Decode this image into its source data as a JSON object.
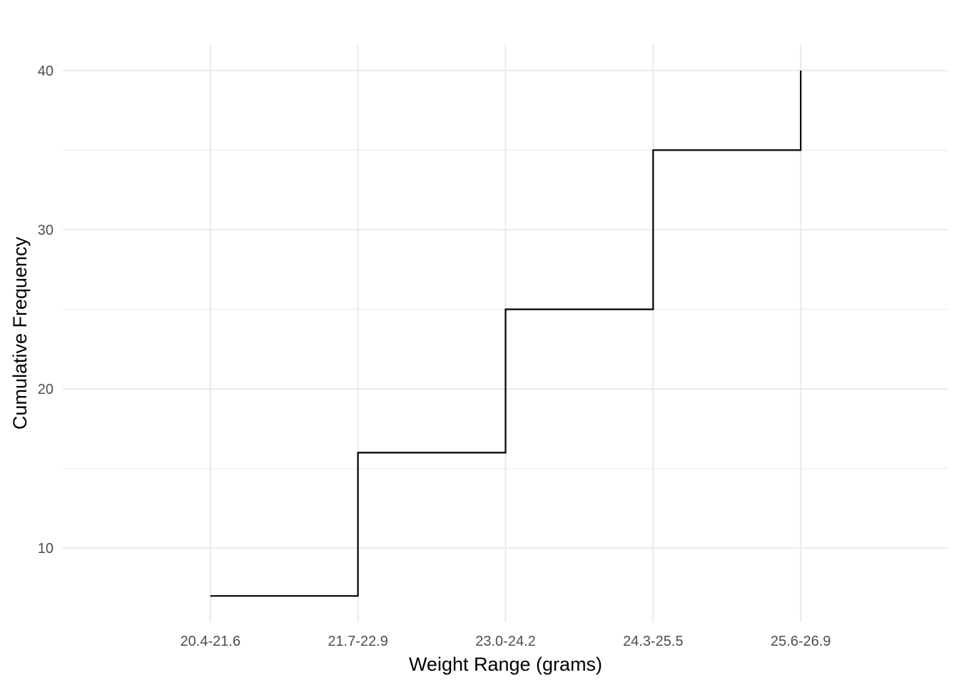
{
  "chart_data": {
    "type": "line",
    "subtype": "step",
    "categories": [
      "20.4-21.6",
      "21.7-22.9",
      "23.0-24.2",
      "24.3-25.5",
      "25.6-26.9"
    ],
    "values": [
      7,
      16,
      25,
      35,
      40
    ],
    "xlabel": "Weight Range (grams)",
    "ylabel": "Cumulative Frequency",
    "ylim": [
      5.35,
      41.65
    ],
    "yticks": [
      10,
      20,
      30,
      40
    ],
    "grid": true,
    "colors": {
      "line": "#000000",
      "grid": "#ebebeb",
      "tick_text": "#4d4d4d"
    }
  }
}
